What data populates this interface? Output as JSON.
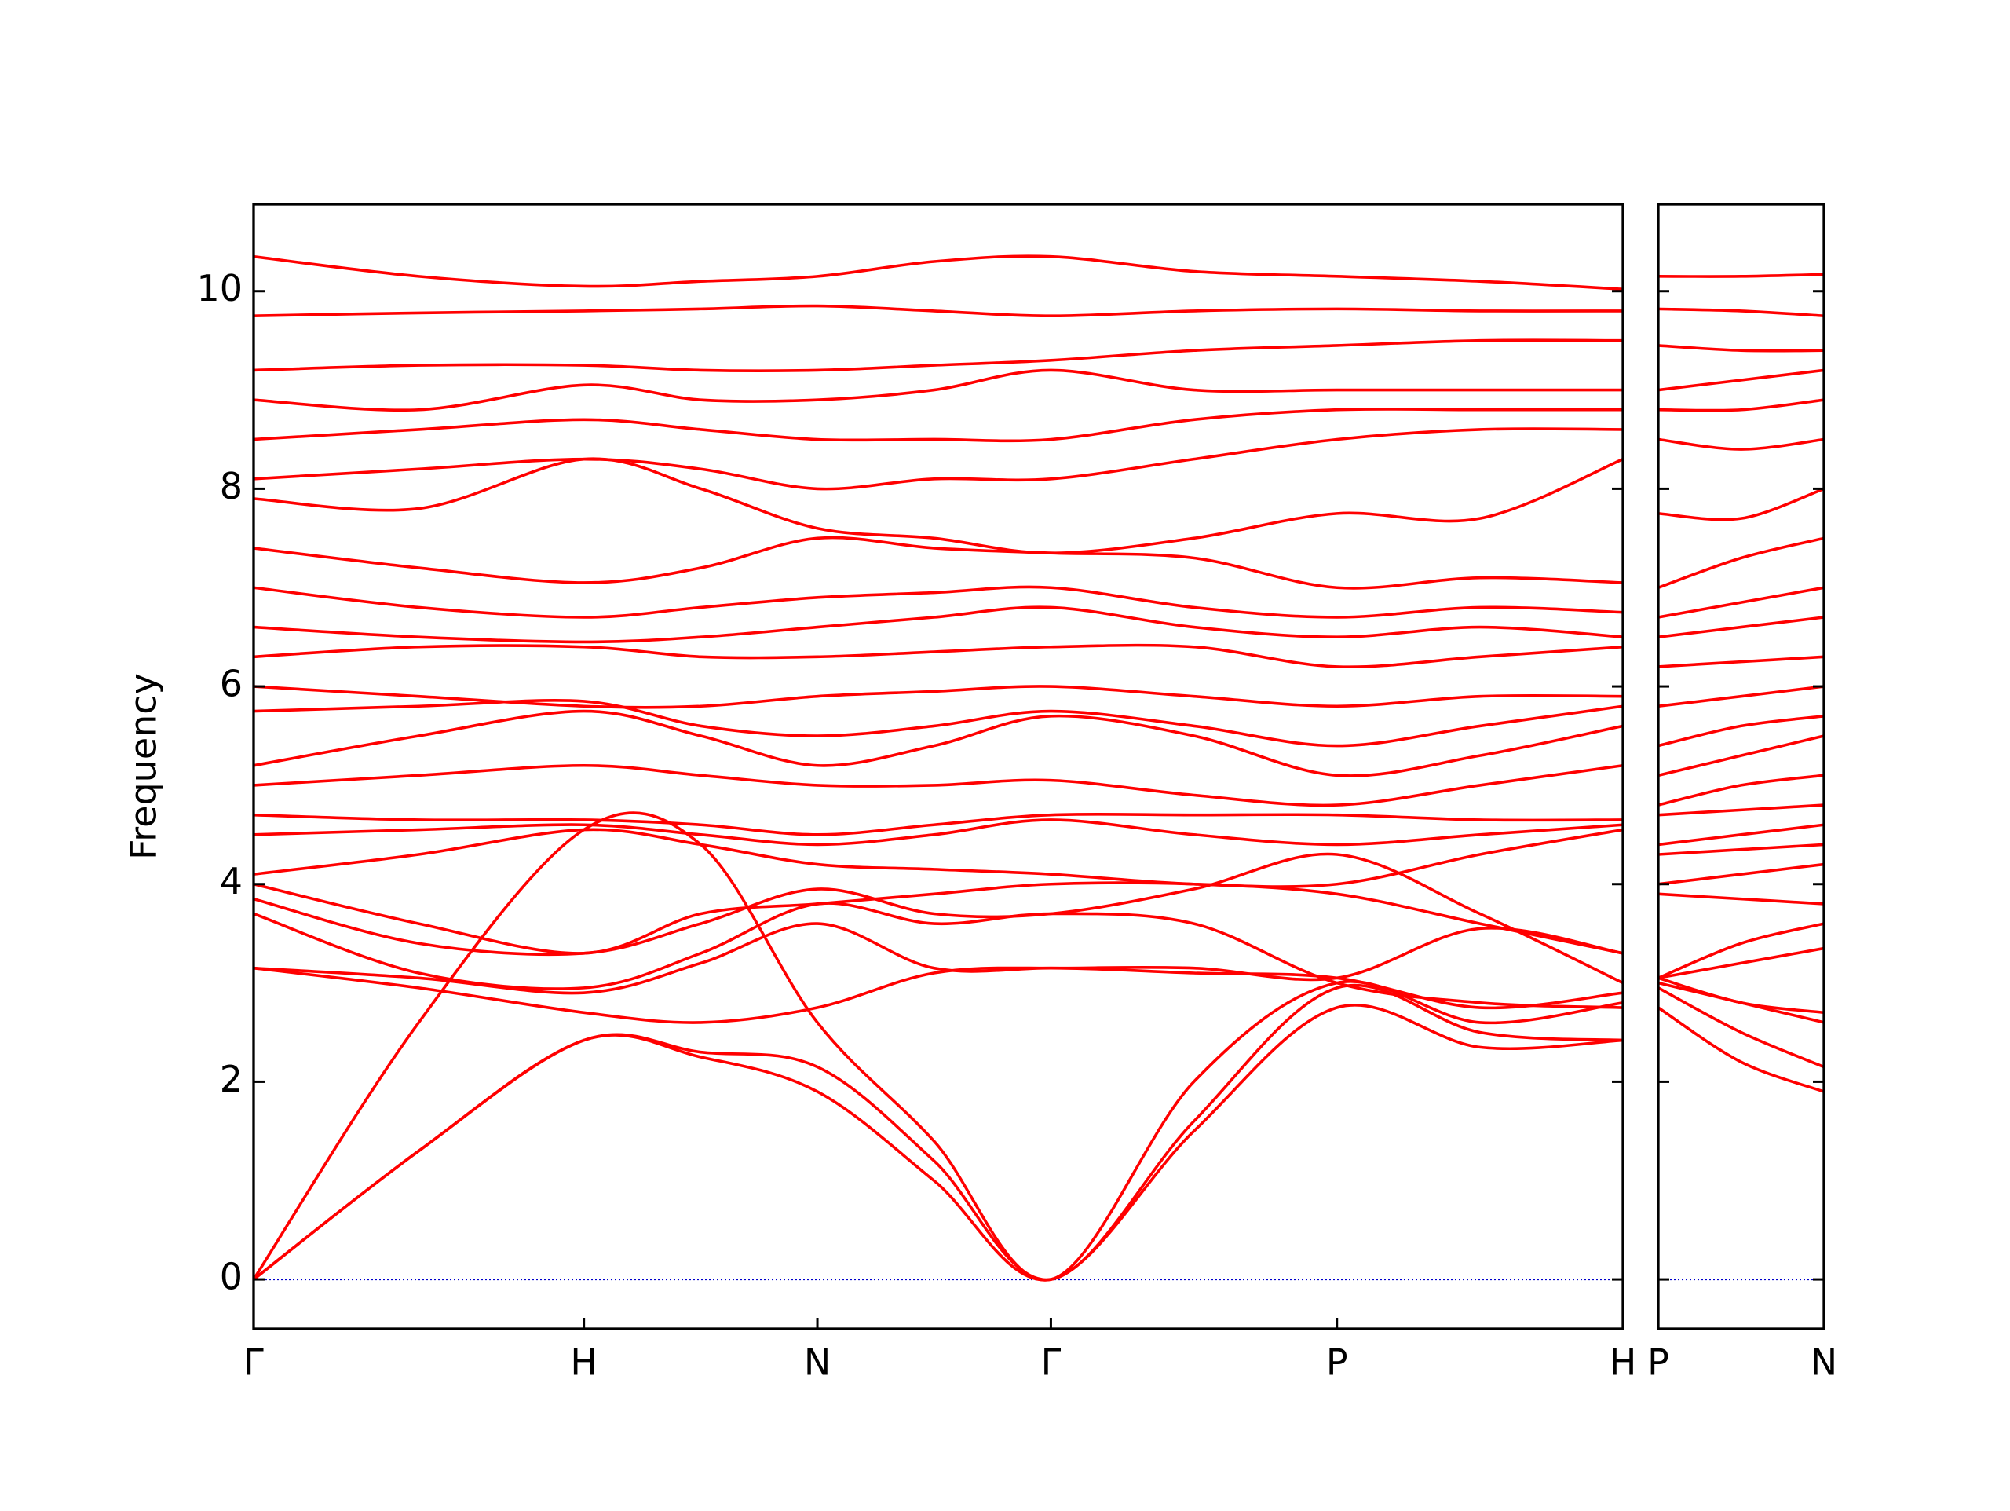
{
  "chart_data": [
    {
      "type": "line",
      "ylabel": "Frequency",
      "color": "#ff0000",
      "hline": 0,
      "hline_color": "#0000cc",
      "ylim": [
        -0.5,
        10.88
      ],
      "yticks": [
        0,
        2,
        4,
        6,
        8,
        10
      ],
      "ytick_labels": true,
      "xlim": [
        0,
        4.146
      ],
      "xticks": [
        {
          "value": 0,
          "label": "Γ"
        },
        {
          "value": 1.0,
          "label": "H"
        },
        {
          "value": 1.707,
          "label": "N"
        },
        {
          "value": 2.414,
          "label": "Γ"
        },
        {
          "value": 3.28,
          "label": "P"
        },
        {
          "value": 4.146,
          "label": "H"
        }
      ],
      "x": [
        0,
        0.5,
        1.0,
        1.354,
        1.707,
        2.06,
        2.414,
        2.847,
        3.28,
        3.713,
        4.146
      ],
      "series": [
        {
          "values": [
            0,
            1.3,
            2.42,
            2.25,
            1.9,
            1.0,
            0,
            1.5,
            2.75,
            2.35,
            2.42
          ]
        },
        {
          "values": [
            0,
            1.3,
            2.42,
            2.3,
            2.15,
            1.2,
            0,
            1.6,
            2.95,
            2.5,
            2.42
          ]
        },
        {
          "values": [
            0,
            2.6,
            4.55,
            4.4,
            2.6,
            1.4,
            0,
            2.0,
            3.0,
            2.6,
            2.8
          ]
        },
        {
          "values": [
            3.15,
            2.95,
            2.7,
            2.6,
            2.75,
            3.1,
            3.15,
            3.1,
            3.05,
            2.75,
            2.9
          ]
        },
        {
          "values": [
            3.15,
            3.05,
            2.9,
            3.2,
            3.6,
            3.15,
            3.15,
            3.15,
            3.05,
            3.55,
            3.3
          ]
        },
        {
          "values": [
            3.7,
            3.1,
            2.95,
            3.3,
            3.8,
            3.6,
            3.7,
            3.6,
            3.0,
            2.8,
            2.75
          ]
        },
        {
          "values": [
            3.85,
            3.4,
            3.3,
            3.6,
            3.95,
            3.7,
            3.7,
            3.95,
            4.3,
            3.7,
            3.0
          ]
        },
        {
          "values": [
            4.0,
            3.6,
            3.3,
            3.7,
            3.8,
            3.9,
            4.0,
            4.0,
            3.9,
            3.6,
            3.3
          ]
        },
        {
          "values": [
            4.1,
            4.3,
            4.55,
            4.4,
            4.2,
            4.15,
            4.1,
            4.0,
            4.0,
            4.3,
            4.55
          ]
        },
        {
          "values": [
            4.5,
            4.55,
            4.6,
            4.5,
            4.4,
            4.5,
            4.65,
            4.5,
            4.4,
            4.5,
            4.6
          ]
        },
        {
          "values": [
            4.7,
            4.65,
            4.65,
            4.6,
            4.5,
            4.6,
            4.7,
            4.7,
            4.7,
            4.65,
            4.65
          ]
        },
        {
          "values": [
            5.0,
            5.1,
            5.2,
            5.1,
            5.0,
            5.0,
            5.05,
            4.9,
            4.8,
            5.0,
            5.2
          ]
        },
        {
          "values": [
            5.2,
            5.5,
            5.75,
            5.5,
            5.2,
            5.4,
            5.7,
            5.5,
            5.1,
            5.3,
            5.6
          ]
        },
        {
          "values": [
            5.75,
            5.8,
            5.85,
            5.6,
            5.5,
            5.6,
            5.75,
            5.6,
            5.4,
            5.6,
            5.8
          ]
        },
        {
          "values": [
            6.0,
            5.9,
            5.8,
            5.8,
            5.9,
            5.95,
            6.0,
            5.9,
            5.8,
            5.9,
            5.9
          ]
        },
        {
          "values": [
            6.3,
            6.4,
            6.4,
            6.3,
            6.3,
            6.35,
            6.4,
            6.4,
            6.2,
            6.3,
            6.4
          ]
        },
        {
          "values": [
            6.6,
            6.5,
            6.45,
            6.5,
            6.6,
            6.7,
            6.8,
            6.6,
            6.5,
            6.6,
            6.5
          ]
        },
        {
          "values": [
            7.0,
            6.8,
            6.7,
            6.8,
            6.9,
            6.95,
            7.0,
            6.8,
            6.7,
            6.8,
            6.75
          ]
        },
        {
          "values": [
            7.4,
            7.2,
            7.05,
            7.2,
            7.5,
            7.4,
            7.35,
            7.3,
            7.0,
            7.1,
            7.05
          ]
        },
        {
          "values": [
            7.9,
            7.8,
            8.3,
            8.0,
            7.6,
            7.5,
            7.35,
            7.5,
            7.75,
            7.7,
            8.3
          ]
        },
        {
          "values": [
            8.1,
            8.2,
            8.3,
            8.2,
            8.0,
            8.1,
            8.1,
            8.3,
            8.5,
            8.6,
            8.6
          ]
        },
        {
          "values": [
            8.5,
            8.6,
            8.7,
            8.6,
            8.5,
            8.5,
            8.5,
            8.7,
            8.8,
            8.8,
            8.8
          ]
        },
        {
          "values": [
            8.9,
            8.8,
            9.05,
            8.9,
            8.9,
            9.0,
            9.2,
            9.0,
            9.0,
            9.0,
            9.0
          ]
        },
        {
          "values": [
            9.2,
            9.25,
            9.25,
            9.2,
            9.2,
            9.25,
            9.3,
            9.4,
            9.45,
            9.5,
            9.5
          ]
        },
        {
          "values": [
            9.75,
            9.78,
            9.8,
            9.82,
            9.85,
            9.8,
            9.75,
            9.8,
            9.82,
            9.8,
            9.8
          ]
        },
        {
          "values": [
            10.35,
            10.15,
            10.05,
            10.1,
            10.15,
            10.3,
            10.35,
            10.2,
            10.15,
            10.1,
            10.02
          ]
        }
      ]
    },
    {
      "type": "line",
      "color": "#ff0000",
      "hline": 0,
      "hline_color": "#0000cc",
      "ylim": [
        -0.5,
        10.88
      ],
      "yticks": [
        0,
        2,
        4,
        6,
        8,
        10
      ],
      "ytick_labels": false,
      "xlim": [
        0,
        0.5
      ],
      "xticks": [
        {
          "value": 0,
          "label": "P"
        },
        {
          "value": 0.5,
          "label": "N"
        }
      ],
      "x": [
        0,
        0.25,
        0.5
      ],
      "series": [
        {
          "values": [
            2.75,
            2.2,
            1.9
          ]
        },
        {
          "values": [
            2.95,
            2.5,
            2.15
          ]
        },
        {
          "values": [
            3.0,
            2.8,
            2.6
          ]
        },
        {
          "values": [
            3.05,
            2.8,
            2.7
          ]
        },
        {
          "values": [
            3.05,
            3.2,
            3.35
          ]
        },
        {
          "values": [
            3.05,
            3.4,
            3.6
          ]
        },
        {
          "values": [
            3.9,
            3.85,
            3.8
          ]
        },
        {
          "values": [
            4.0,
            4.1,
            4.2
          ]
        },
        {
          "values": [
            4.3,
            4.35,
            4.4
          ]
        },
        {
          "values": [
            4.4,
            4.5,
            4.6
          ]
        },
        {
          "values": [
            4.7,
            4.75,
            4.8
          ]
        },
        {
          "values": [
            4.8,
            5.0,
            5.1
          ]
        },
        {
          "values": [
            5.1,
            5.3,
            5.5
          ]
        },
        {
          "values": [
            5.4,
            5.6,
            5.7
          ]
        },
        {
          "values": [
            5.8,
            5.9,
            6.0
          ]
        },
        {
          "values": [
            6.2,
            6.25,
            6.3
          ]
        },
        {
          "values": [
            6.5,
            6.6,
            6.7
          ]
        },
        {
          "values": [
            6.7,
            6.85,
            7.0
          ]
        },
        {
          "values": [
            7.0,
            7.3,
            7.5
          ]
        },
        {
          "values": [
            7.75,
            7.7,
            8.0
          ]
        },
        {
          "values": [
            8.5,
            8.4,
            8.5
          ]
        },
        {
          "values": [
            8.8,
            8.8,
            8.9
          ]
        },
        {
          "values": [
            9.0,
            9.1,
            9.2
          ]
        },
        {
          "values": [
            9.45,
            9.4,
            9.4
          ]
        },
        {
          "values": [
            9.82,
            9.8,
            9.75
          ]
        },
        {
          "values": [
            10.15,
            10.15,
            10.17
          ]
        }
      ]
    }
  ]
}
